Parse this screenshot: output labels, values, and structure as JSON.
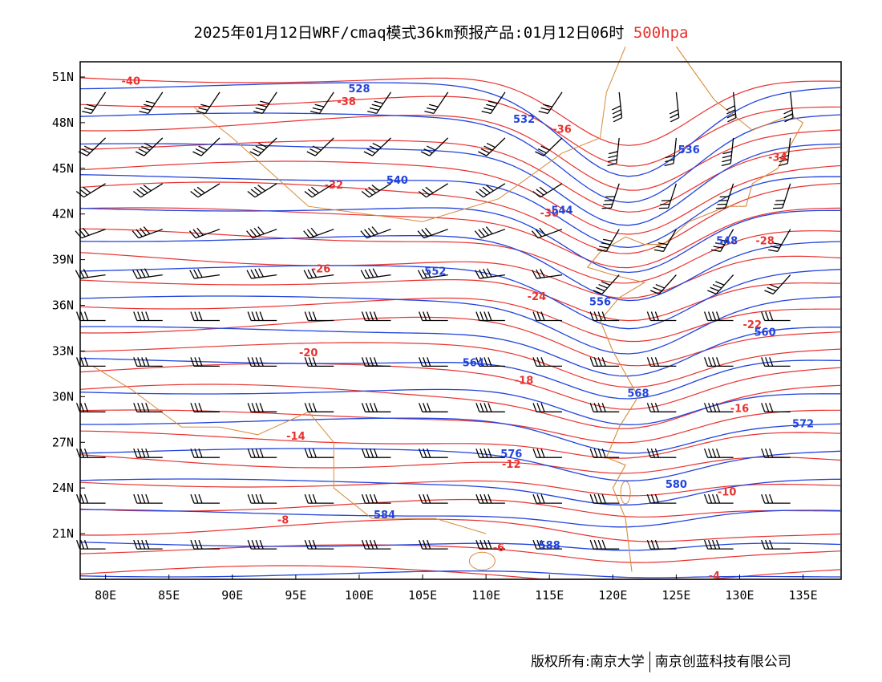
{
  "title": {
    "main": "2025年01月12日WRF/cmaq模式36km预报产品:01月12日06时",
    "level": "500hpa"
  },
  "footer": {
    "copyright": "版权所有:南京大学",
    "company": "南京创蓝科技有限公司"
  },
  "colors": {
    "temperature_contour": "#e8322f",
    "height_contour": "#2244dd",
    "border": "#d98a3a",
    "wind_barb": "#000000"
  },
  "map": {
    "lon_range": [
      78,
      138
    ],
    "lat_range": [
      18,
      52
    ],
    "x_ticks": [
      "80E",
      "85E",
      "90E",
      "95E",
      "100E",
      "105E",
      "110E",
      "115E",
      "120E",
      "125E",
      "130E",
      "135E"
    ],
    "y_ticks": [
      "51N",
      "48N",
      "45N",
      "42N",
      "39N",
      "36N",
      "33N",
      "30N",
      "27N",
      "24N",
      "21N"
    ],
    "temperature_labels": [
      "-40",
      "-38",
      "-36",
      "-34",
      "-32",
      "-30",
      "-28",
      "-26",
      "-24",
      "-22",
      "-20",
      "-18",
      "-16",
      "-14",
      "-12",
      "-10",
      "-8",
      "-6",
      "-4"
    ],
    "height_labels": [
      "528",
      "532",
      "536",
      "540",
      "544",
      "548",
      "552",
      "556",
      "560",
      "564",
      "568",
      "572",
      "576",
      "580",
      "584",
      "588"
    ]
  }
}
